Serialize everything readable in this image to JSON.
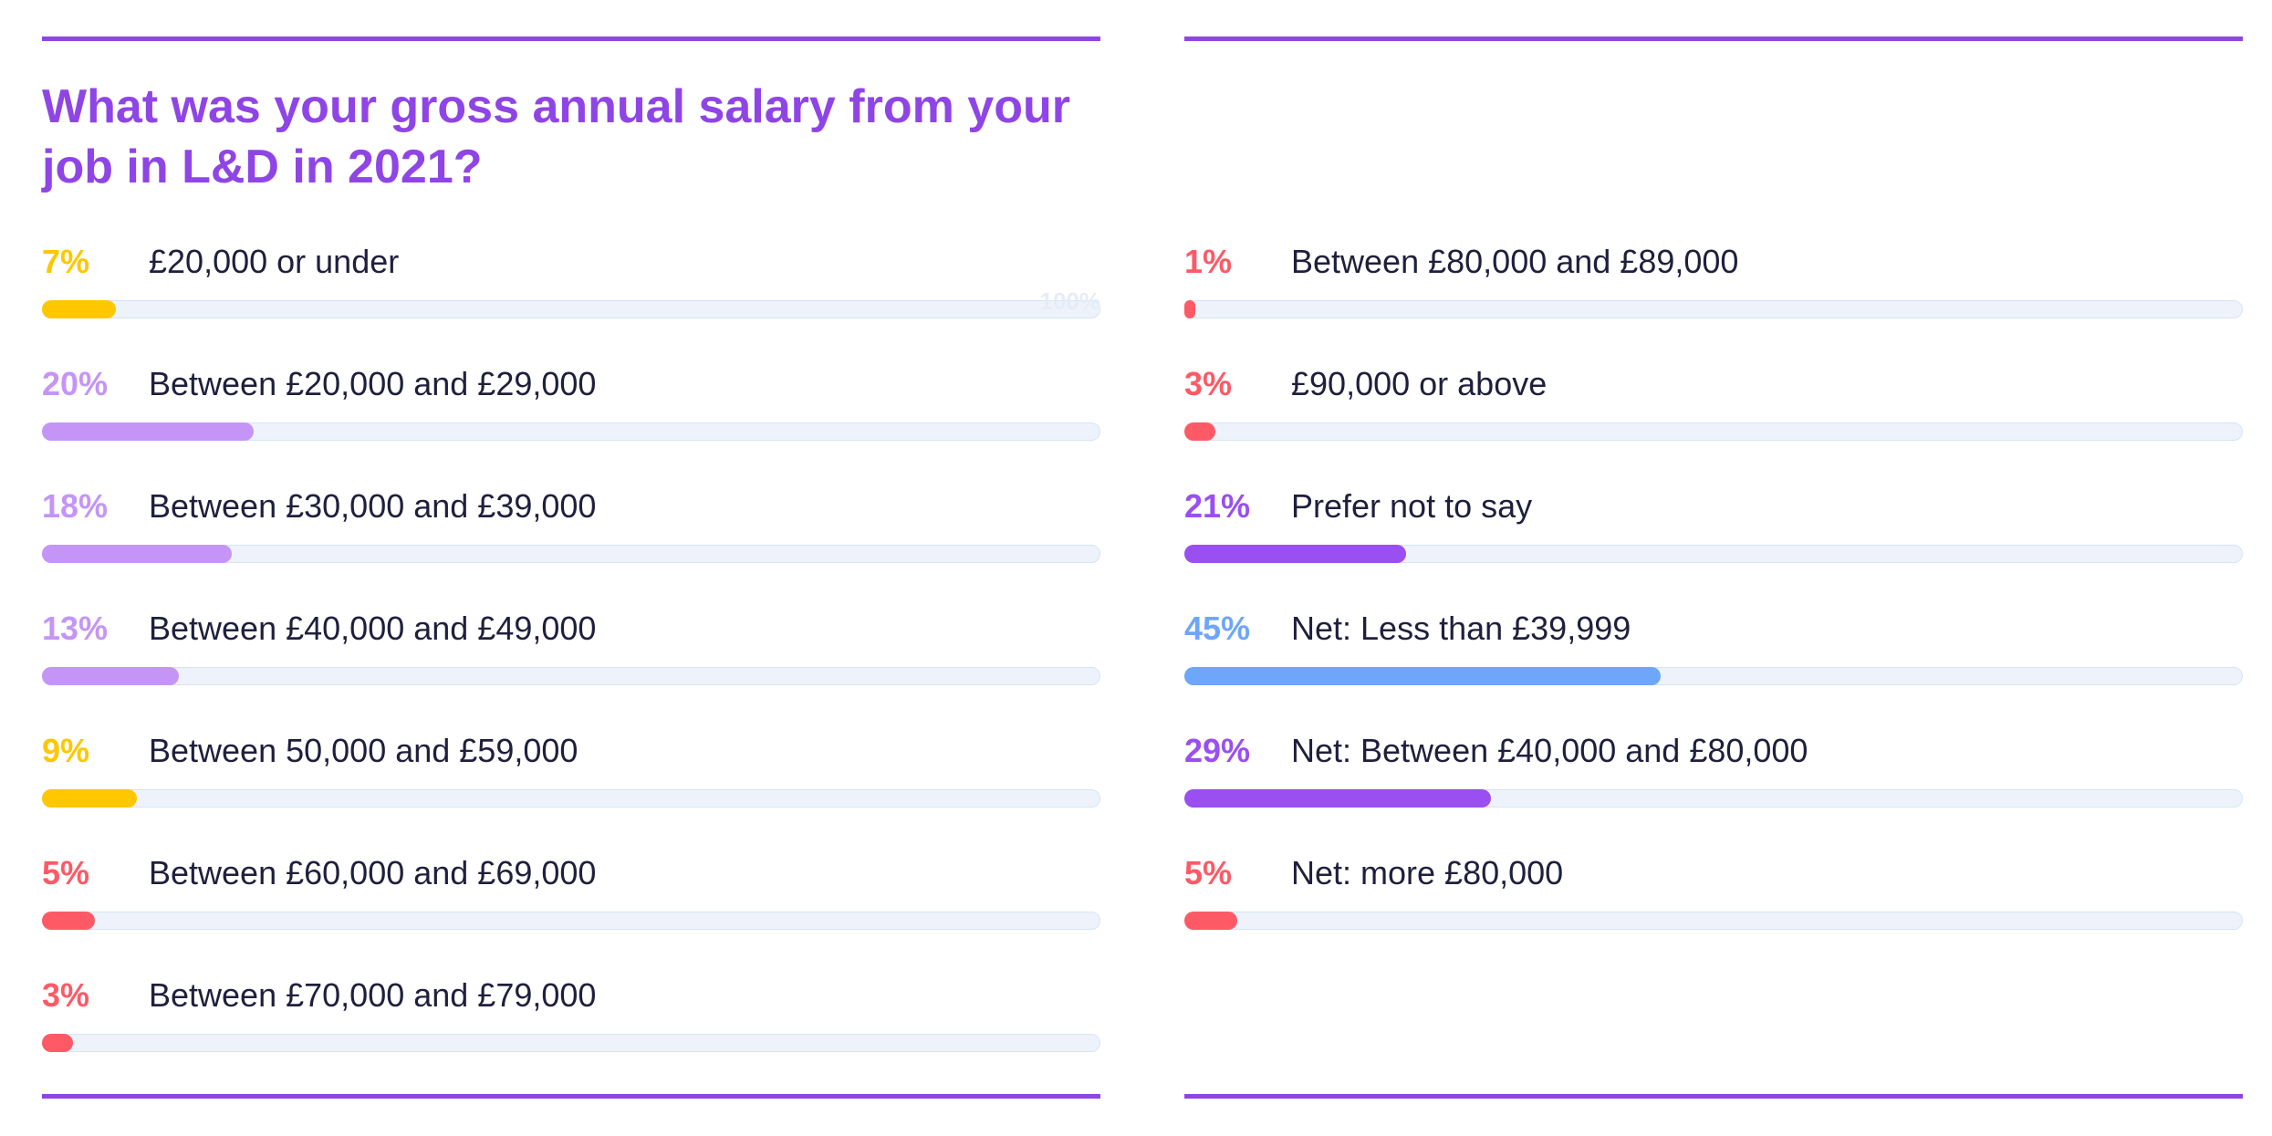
{
  "title": "What was your gross annual salary from your job in L&D in 2021?",
  "watermark": "100%",
  "colors": {
    "accent": "#8f45e6",
    "yellow": "#fec700",
    "lavender": "#c495f7",
    "red": "#fd5a66",
    "purple": "#9a4ff0",
    "blue": "#6ea6f9",
    "track": "#eef3fb",
    "text": "#1f1f3d"
  },
  "chart_data": {
    "type": "bar",
    "title": "What was your gross annual salary from your job in L&D in 2021?",
    "xlim": [
      0,
      100
    ],
    "unit": "%",
    "columns": [
      [
        {
          "label": "£20,000 or under",
          "value": 7,
          "display": "7%",
          "color": "yellow"
        },
        {
          "label": "Between £20,000 and £29,000",
          "value": 20,
          "display": "20%",
          "color": "lavender"
        },
        {
          "label": "Between £30,000 and £39,000",
          "value": 18,
          "display": "18%",
          "color": "lavender"
        },
        {
          "label": "Between £40,000 and £49,000",
          "value": 13,
          "display": "13%",
          "color": "lavender"
        },
        {
          "label": "Between 50,000 and £59,000",
          "value": 9,
          "display": "9%",
          "color": "yellow"
        },
        {
          "label": "Between £60,000 and £69,000",
          "value": 5,
          "display": "5%",
          "color": "red"
        },
        {
          "label": "Between £70,000 and £79,000",
          "value": 3,
          "display": "3%",
          "color": "red"
        }
      ],
      [
        {
          "label": "Between £80,000 and £89,000",
          "value": 1,
          "display": "1%",
          "color": "red"
        },
        {
          "label": "£90,000 or above",
          "value": 3,
          "display": "3%",
          "color": "red"
        },
        {
          "label": "Prefer not to say",
          "value": 21,
          "display": "21%",
          "color": "purple"
        },
        {
          "label": "Net: Less than £39,999",
          "value": 45,
          "display": "45%",
          "color": "blue"
        },
        {
          "label": "Net: Between £40,000 and £80,000",
          "value": 29,
          "display": "29%",
          "color": "purple"
        },
        {
          "label": "Net: more £80,000",
          "value": 5,
          "display": "5%",
          "color": "red"
        }
      ]
    ]
  }
}
